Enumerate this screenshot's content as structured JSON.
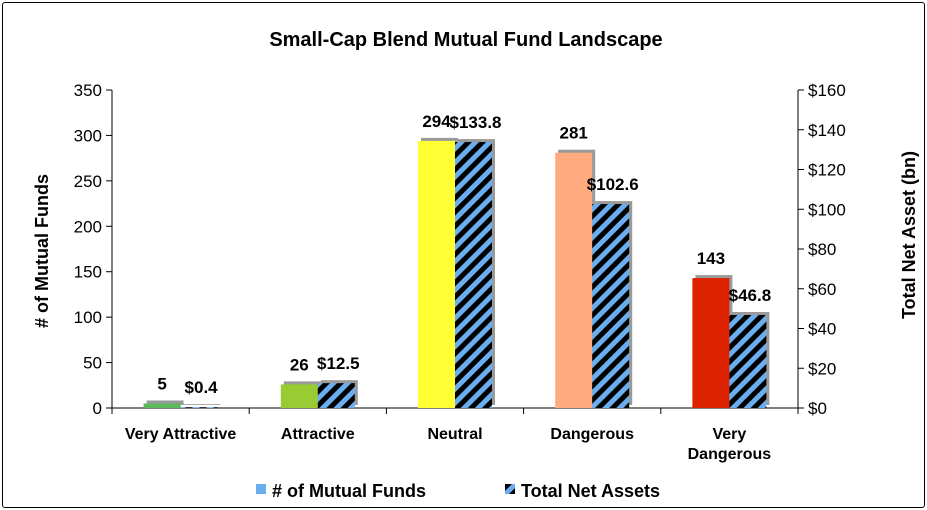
{
  "chart_data": {
    "type": "bar",
    "title": "Small-Cap Blend Mutual Fund Landscape",
    "categories": [
      "Very Attractive",
      "Attractive",
      "Neutral",
      "Dangerous",
      "Very Dangerous"
    ],
    "category_lines": [
      [
        "Very Attractive"
      ],
      [
        "Attractive"
      ],
      [
        "Neutral"
      ],
      [
        "Dangerous"
      ],
      [
        "Very",
        "Dangerous"
      ]
    ],
    "series": [
      {
        "name": "# of Mutual Funds",
        "axis": "left",
        "values": [
          5,
          26,
          294,
          281,
          143
        ],
        "labels": [
          "5",
          "26",
          "294",
          "281",
          "143"
        ],
        "colors": [
          "#5cb85c",
          "#99cc33",
          "#ffff33",
          "#ffaa7f",
          "#dd2200"
        ]
      },
      {
        "name": "Total Net Assets",
        "axis": "right",
        "values": [
          0.4,
          12.5,
          133.8,
          102.6,
          46.8
        ],
        "labels": [
          "$0.4",
          "$12.5",
          "$133.8",
          "$102.6",
          "$46.8"
        ],
        "pattern": [
          "#000000",
          "#6aaef0"
        ]
      }
    ],
    "ylabel": "# of Mutual Funds",
    "ylim": [
      0,
      350
    ],
    "yticks": [
      "0",
      "50",
      "100",
      "150",
      "200",
      "250",
      "300",
      "350"
    ],
    "y2label": "Total Net Asset (bn)",
    "y2lim": [
      0,
      160
    ],
    "y2ticks": [
      "$0",
      "$20",
      "$40",
      "$60",
      "$80",
      "$100",
      "$120",
      "$140",
      "$160"
    ],
    "legend": {
      "placement": "bottom",
      "entries": [
        "# of Mutual Funds",
        "Total Net Assets"
      ]
    },
    "grid": false
  }
}
